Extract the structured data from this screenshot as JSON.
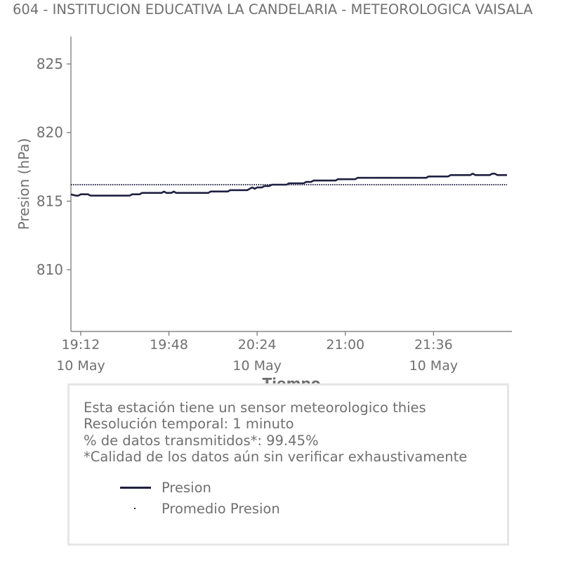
{
  "title": "604 - INSTITUCION EDUCATIVA LA CANDELARIA - METEOROLOGICA VAISALA",
  "colors": {
    "series": "#1f2041",
    "text": "#707070",
    "box_border": "#e6e6e6"
  },
  "chart_data": {
    "type": "line",
    "xlabel": "Tiempo",
    "ylabel": "Presion (hPa)",
    "ylim": [
      805.5,
      827
    ],
    "yticks": [
      810,
      815,
      820,
      825
    ],
    "xlim": [
      "19:08",
      "22:08"
    ],
    "xticks": [
      {
        "time": "19:12",
        "line1": "19:12",
        "line2": "10 May"
      },
      {
        "time": "19:48",
        "line1": "19:48",
        "line2": ""
      },
      {
        "time": "20:24",
        "line1": "20:24",
        "line2": "10 May"
      },
      {
        "time": "21:00",
        "line1": "21:00",
        "line2": ""
      },
      {
        "time": "21:36",
        "line1": "21:36",
        "line2": "10 May"
      }
    ],
    "grid": false,
    "series": [
      {
        "name": "Presion",
        "style": "solid",
        "points": [
          [
            "19:08",
            815.5
          ],
          [
            "19:10",
            815.4
          ],
          [
            "19:11",
            815.4
          ],
          [
            "19:12",
            815.5
          ],
          [
            "19:15",
            815.5
          ],
          [
            "19:16",
            815.4
          ],
          [
            "19:32",
            815.4
          ],
          [
            "19:33",
            815.5
          ],
          [
            "19:36",
            815.5
          ],
          [
            "19:37",
            815.6
          ],
          [
            "19:45",
            815.6
          ],
          [
            "19:46",
            815.7
          ],
          [
            "19:47",
            815.6
          ],
          [
            "19:49",
            815.6
          ],
          [
            "19:50",
            815.7
          ],
          [
            "19:51",
            815.6
          ],
          [
            "20:04",
            815.6
          ],
          [
            "20:05",
            815.7
          ],
          [
            "20:12",
            815.7
          ],
          [
            "20:13",
            815.8
          ],
          [
            "20:20",
            815.8
          ],
          [
            "20:21",
            815.9
          ],
          [
            "20:22",
            816.0
          ],
          [
            "20:23",
            815.9
          ],
          [
            "20:24",
            816.0
          ],
          [
            "20:26",
            816.0
          ],
          [
            "20:27",
            816.1
          ],
          [
            "20:29",
            816.1
          ],
          [
            "20:30",
            816.2
          ],
          [
            "20:36",
            816.2
          ],
          [
            "20:37",
            816.3
          ],
          [
            "20:43",
            816.3
          ],
          [
            "20:44",
            816.4
          ],
          [
            "20:46",
            816.4
          ],
          [
            "20:47",
            816.5
          ],
          [
            "20:56",
            816.5
          ],
          [
            "20:57",
            816.6
          ],
          [
            "21:04",
            816.6
          ],
          [
            "21:05",
            816.7
          ],
          [
            "21:33",
            816.7
          ],
          [
            "21:34",
            816.8
          ],
          [
            "21:42",
            816.8
          ],
          [
            "21:43",
            816.9
          ],
          [
            "21:51",
            816.9
          ],
          [
            "21:52",
            817.0
          ],
          [
            "21:53",
            816.9
          ],
          [
            "21:59",
            816.9
          ],
          [
            "22:00",
            817.0
          ],
          [
            "22:01",
            817.0
          ],
          [
            "22:02",
            816.9
          ],
          [
            "22:06",
            816.9
          ]
        ]
      },
      {
        "name": "Promedio Presion",
        "style": "dotted",
        "points": [
          [
            "19:08",
            816.2
          ],
          [
            "22:06",
            816.2
          ]
        ]
      }
    ]
  },
  "info": {
    "line1": "Esta estación tiene un sensor meteorologico thies",
    "line2": "Resolución temporal: 1 minuto",
    "line3": "% de datos transmitidos*: 99.45%",
    "line4": "*Calidad de los datos aún sin verificar exhaustivamente"
  },
  "legend": {
    "item1": "Presion",
    "item2": "Promedio Presion"
  }
}
